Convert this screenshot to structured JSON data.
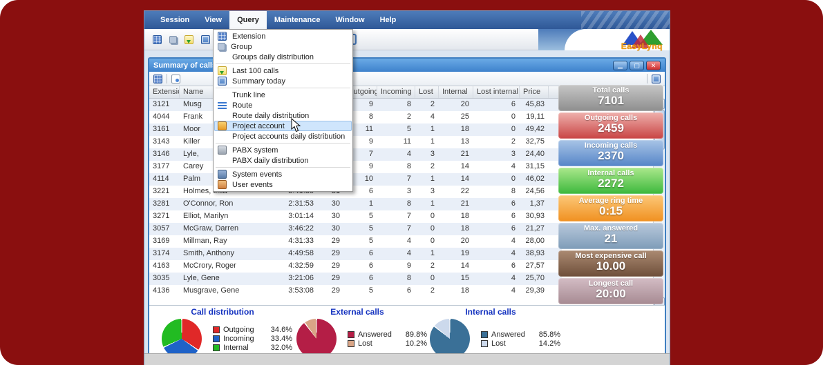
{
  "app": {
    "logo_text": "EasyLynq",
    "menu_bar": [
      "Session",
      "View",
      "Query",
      "Maintenance",
      "Window",
      "Help"
    ],
    "active_menu": "Query",
    "toolbar_icons": [
      "extension-icon",
      "group-icon",
      "last-100-calls-icon",
      "summary-today-icon",
      "phone-icon"
    ]
  },
  "query_menu": {
    "items": [
      {
        "label": "Extension",
        "icon": "extension"
      },
      {
        "label": "Group",
        "icon": "group"
      },
      {
        "label": "Groups daily distribution"
      },
      {
        "separator": true
      },
      {
        "label": "Last 100 calls",
        "icon": "last100"
      },
      {
        "label": "Summary today",
        "icon": "summary"
      },
      {
        "separator": true
      },
      {
        "label": "Trunk line"
      },
      {
        "label": "Route",
        "icon": "route"
      },
      {
        "label": "Route daily distribution"
      },
      {
        "label": "Project account",
        "icon": "project",
        "highlighted": true
      },
      {
        "label": "Project accounts daily distribution"
      },
      {
        "separator": true
      },
      {
        "label": "PABX system",
        "icon": "pabx"
      },
      {
        "label": "PABX daily distribution"
      },
      {
        "separator": true
      },
      {
        "label": "System events",
        "icon": "sysevents"
      },
      {
        "label": "User events",
        "icon": "userevents"
      }
    ]
  },
  "child_window": {
    "title": "Summary of calls tod",
    "buttons": [
      "minimize",
      "maximize",
      "close"
    ]
  },
  "table": {
    "columns": [
      "Extension",
      "Name",
      "",
      "",
      "Outgoing",
      "Incoming",
      "Lost",
      "Internal",
      "Lost internal",
      "Price"
    ],
    "rows": [
      [
        "3121",
        "Musg",
        "",
        "",
        "9",
        "8",
        "2",
        "20",
        "6",
        "45,83"
      ],
      [
        "4044",
        "Frank",
        "",
        "",
        "8",
        "2",
        "4",
        "25",
        "0",
        "19,11"
      ],
      [
        "3161",
        "Moor",
        "",
        "",
        "11",
        "5",
        "1",
        "18",
        "0",
        "49,42"
      ],
      [
        "3143",
        "Killer",
        "",
        "",
        "9",
        "11",
        "1",
        "13",
        "2",
        "32,75"
      ],
      [
        "3146",
        "Lyle,",
        "",
        "",
        "7",
        "4",
        "3",
        "21",
        "3",
        "24,40"
      ],
      [
        "3177",
        "Carey",
        "",
        "",
        "9",
        "8",
        "2",
        "14",
        "4",
        "31,15"
      ],
      [
        "4114",
        "Palm",
        "",
        "",
        "10",
        "7",
        "1",
        "14",
        "0",
        "46,02"
      ],
      [
        "3221",
        "Holmes, Lisa",
        "3:41:30",
        "31",
        "6",
        "3",
        "3",
        "22",
        "8",
        "24,56"
      ],
      [
        "3281",
        "O'Connor, Ron",
        "2:31:53",
        "30",
        "1",
        "8",
        "1",
        "21",
        "6",
        "1,37"
      ],
      [
        "3271",
        "Elliot, Marilyn",
        "3:01:14",
        "30",
        "5",
        "7",
        "0",
        "18",
        "6",
        "30,93"
      ],
      [
        "3057",
        "McGraw, Darren",
        "3:46:22",
        "30",
        "5",
        "7",
        "0",
        "18",
        "6",
        "21,27"
      ],
      [
        "3169",
        "Millman, Ray",
        "4:31:33",
        "29",
        "5",
        "4",
        "0",
        "20",
        "4",
        "28,00"
      ],
      [
        "3174",
        "Smith, Anthony",
        "4:49:58",
        "29",
        "6",
        "4",
        "1",
        "19",
        "4",
        "38,93"
      ],
      [
        "4163",
        "McCrory, Roger",
        "4:32:59",
        "29",
        "6",
        "9",
        "2",
        "14",
        "6",
        "27,57"
      ],
      [
        "3035",
        "Lyle, Gene",
        "3:21:06",
        "29",
        "6",
        "8",
        "0",
        "15",
        "4",
        "25,70"
      ],
      [
        "4136",
        "Musgrave, Gene",
        "3:53:08",
        "29",
        "5",
        "6",
        "2",
        "18",
        "4",
        "29,39"
      ]
    ]
  },
  "stats": [
    {
      "label": "Total calls",
      "value": "7101",
      "top": "#c6c6c6",
      "bottom": "#8e8e8e"
    },
    {
      "label": "Outgoing calls",
      "value": "2459",
      "top": "#efb0ac",
      "bottom": "#c94444"
    },
    {
      "label": "Incoming calls",
      "value": "2370",
      "top": "#a8c4e6",
      "bottom": "#5585c8"
    },
    {
      "label": "Internal calls",
      "value": "2272",
      "top": "#abe88c",
      "bottom": "#3cb83c"
    },
    {
      "label": "Average ring time",
      "value": "0:15",
      "top": "#fcc878",
      "bottom": "#f09020"
    },
    {
      "label": "Max. answered",
      "value": "21",
      "top": "#b9c9dc",
      "bottom": "#7e9cb8"
    },
    {
      "label": "Most expensive call",
      "value": "10.00",
      "top": "#ab8a72",
      "bottom": "#6e4f3a"
    },
    {
      "label": "Longest call",
      "value": "20:00",
      "top": "#d3bcc4",
      "bottom": "#a68a92"
    }
  ],
  "chart_data": [
    {
      "type": "pie",
      "title": "Call distribution",
      "labels": [
        "Outgoing",
        "Incoming",
        "Internal"
      ],
      "values": [
        34.6,
        33.4,
        32.0
      ],
      "colors": [
        "#e02828",
        "#1e62c8",
        "#22bb22"
      ],
      "value_format": "percent",
      "legend_position": "right"
    },
    {
      "type": "pie",
      "title": "External calls",
      "labels": [
        "Answered",
        "Lost"
      ],
      "values": [
        89.8,
        10.2
      ],
      "colors": [
        "#b41e46",
        "#d9a586"
      ],
      "value_format": "percent",
      "legend_position": "right"
    },
    {
      "type": "pie",
      "title": "Internal calls",
      "labels": [
        "Answered",
        "Lost"
      ],
      "values": [
        85.8,
        14.2
      ],
      "colors": [
        "#3a7097",
        "#ccd9ec"
      ],
      "value_format": "percent",
      "legend_position": "right"
    }
  ]
}
